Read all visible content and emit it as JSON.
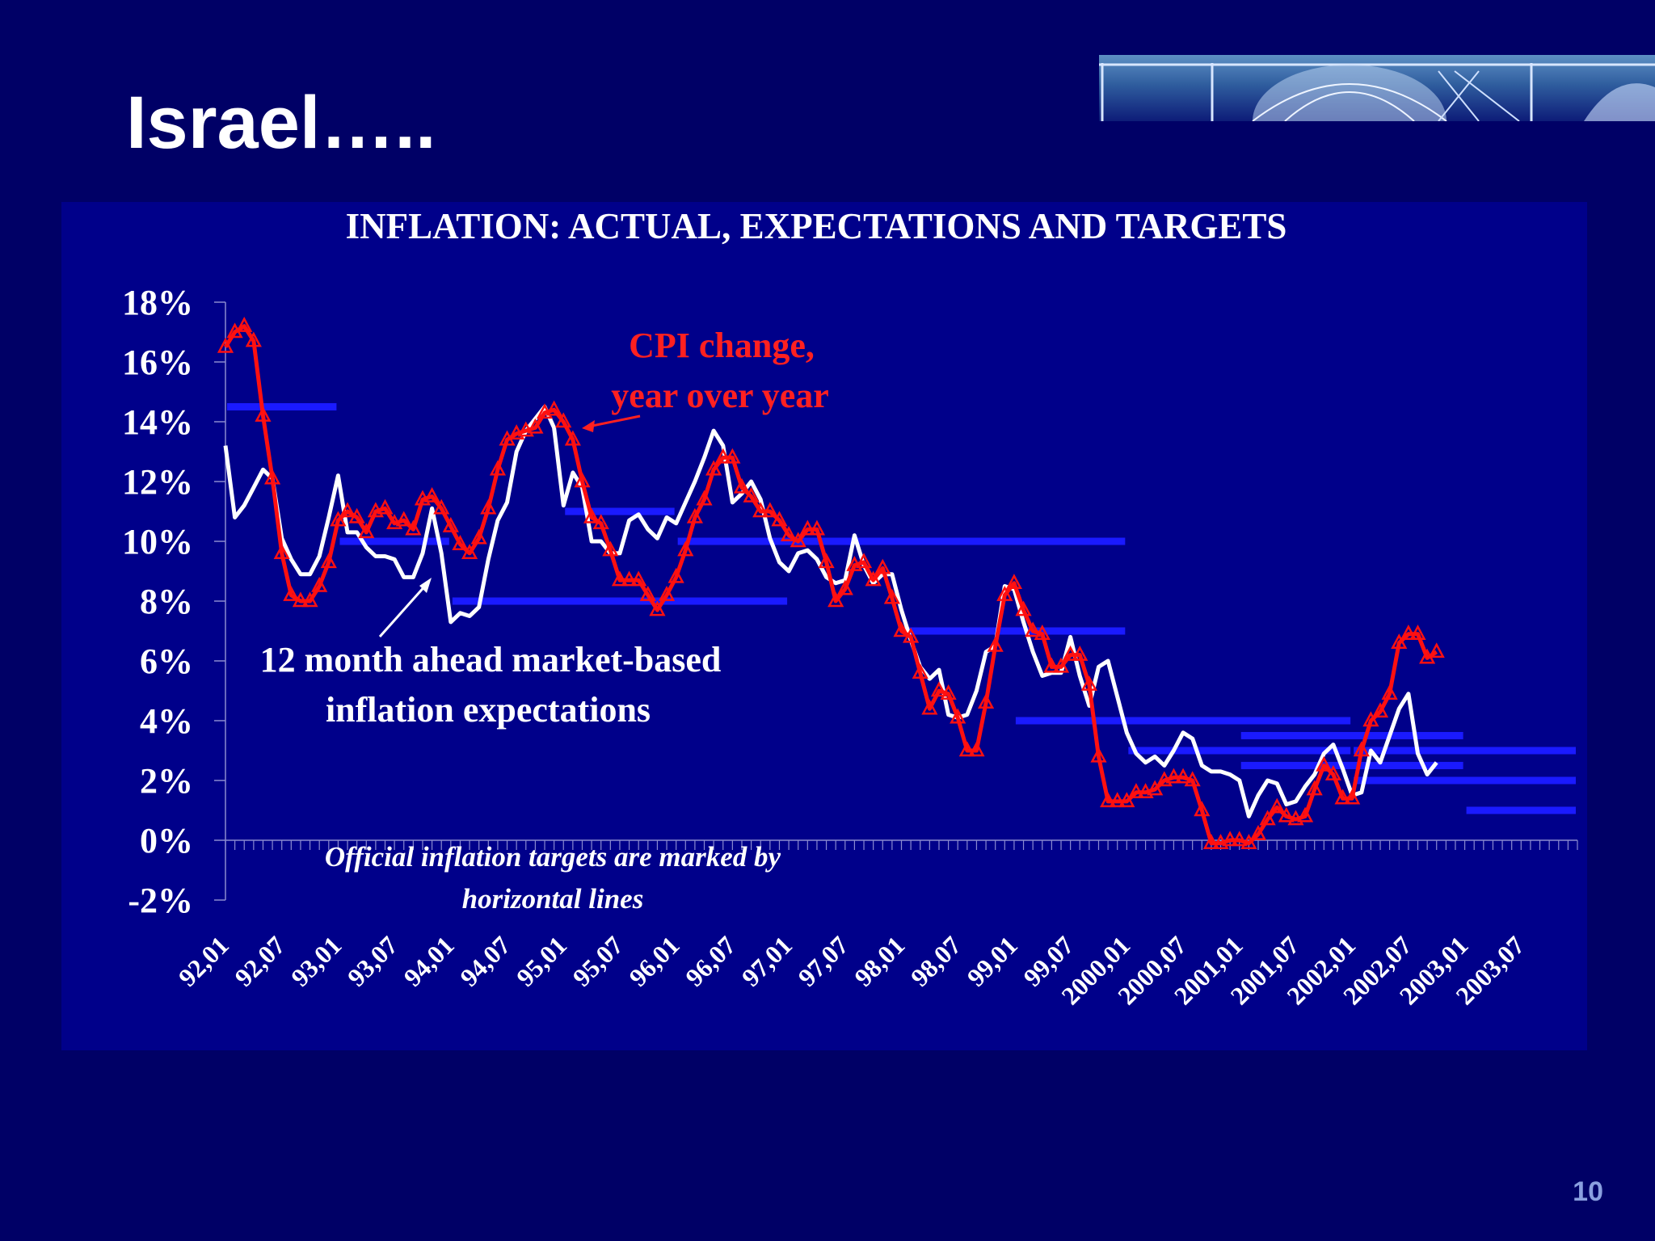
{
  "slide": {
    "title": "Israel…..",
    "page_number": "10"
  },
  "colors": {
    "background": "#000066",
    "plot_area": "#00008a",
    "cpi_series": "#ff1010",
    "expectations_series": "#ffffff",
    "target_lines": "#1a1aff",
    "annotation_red": "#ff2020",
    "text_white": "#ffffff"
  },
  "annotations": {
    "cpi_label_line1": "CPI change,",
    "cpi_label_line2": "year over year",
    "expectations_label_line1": "12 month ahead market-based",
    "expectations_label_line2": "inflation expectations",
    "targets_note_line1": "Official inflation targets are marked by",
    "targets_note_line2": "horizontal lines"
  },
  "chart_data": {
    "type": "line",
    "title": "INFLATION: ACTUAL, EXPECTATIONS AND TARGETS",
    "xlabel": "",
    "ylabel": "",
    "ylim": [
      -2,
      18
    ],
    "y_ticks": [
      -2,
      0,
      2,
      4,
      6,
      8,
      10,
      12,
      14,
      16,
      18
    ],
    "y_tick_labels": [
      "-2%",
      "0%",
      "2%",
      "4%",
      "6%",
      "8%",
      "10%",
      "12%",
      "14%",
      "16%",
      "18%"
    ],
    "x_tick_labels": [
      "92,01",
      "92,07",
      "93,01",
      "93,07",
      "94,01",
      "94,07",
      "95,01",
      "95,07",
      "96,01",
      "96,07",
      "97,01",
      "97,07",
      "98,01",
      "98,07",
      "99,01",
      "99,07",
      "2000,01",
      "2000,07",
      "2001,01",
      "2001,07",
      "2002,01",
      "2002,07",
      "2003,01",
      "2003,07"
    ],
    "grid": false,
    "series": [
      {
        "name": "CPI change, year over year",
        "marker": "triangle",
        "values": [
          16.5,
          17.0,
          17.2,
          16.7,
          14.2,
          12.1,
          9.6,
          8.2,
          8.0,
          8.0,
          8.5,
          9.3,
          10.7,
          11.0,
          10.8,
          10.3,
          11.0,
          11.1,
          10.6,
          10.7,
          10.4,
          11.4,
          11.5,
          11.1,
          10.5,
          9.9,
          9.6,
          10.1,
          11.1,
          12.4,
          13.4,
          13.6,
          13.7,
          13.8,
          14.3,
          14.4,
          14.0,
          13.4,
          12.0,
          10.8,
          10.6,
          9.7,
          8.7,
          8.7,
          8.7,
          8.2,
          7.7,
          8.2,
          8.8,
          9.7,
          10.8,
          11.4,
          12.4,
          12.8,
          12.8,
          11.8,
          11.5,
          11.0,
          11.0,
          10.7,
          10.2,
          10.0,
          10.4,
          10.4,
          9.3,
          8.0,
          8.4,
          9.2,
          9.3,
          8.7,
          9.1,
          8.1,
          7.0,
          6.8,
          5.6,
          4.4,
          5.0,
          4.9,
          4.1,
          3.0,
          3.0,
          4.6,
          6.5,
          8.2,
          8.6,
          7.7,
          7.0,
          6.9,
          5.8,
          5.8,
          6.2,
          6.2,
          5.2,
          2.8,
          1.3,
          1.3,
          1.3,
          1.6,
          1.6,
          1.7,
          2.0,
          2.1,
          2.1,
          2.0,
          1.0,
          -0.1,
          -0.1,
          0.0,
          0.0,
          -0.1,
          0.2,
          0.7,
          1.1,
          0.8,
          0.7,
          0.8,
          1.7,
          2.5,
          2.2,
          1.4,
          1.4,
          3.0,
          4.0,
          4.3,
          4.9,
          6.6,
          6.9,
          6.9,
          6.1,
          6.3
        ]
      },
      {
        "name": "12 month ahead market-based inflation expectations",
        "marker": "none",
        "values": [
          13.2,
          10.8,
          11.2,
          11.8,
          12.4,
          12.1,
          10.1,
          9.4,
          8.9,
          8.9,
          9.5,
          10.8,
          12.2,
          10.3,
          10.3,
          9.8,
          9.5,
          9.5,
          9.4,
          8.8,
          8.8,
          9.6,
          11.1,
          9.6,
          7.3,
          7.6,
          7.5,
          7.8,
          9.4,
          10.7,
          11.3,
          13.0,
          13.7,
          14.1,
          14.5,
          13.8,
          11.2,
          12.3,
          11.8,
          10.0,
          10.0,
          9.6,
          9.6,
          10.7,
          10.9,
          10.4,
          10.1,
          10.8,
          10.6,
          11.3,
          12.0,
          12.8,
          13.7,
          13.2,
          11.3,
          11.6,
          12.0,
          11.4,
          10.1,
          9.3,
          9.0,
          9.6,
          9.7,
          9.4,
          8.8,
          8.6,
          8.7,
          10.2,
          9.2,
          8.6,
          8.9,
          8.9,
          7.7,
          6.7,
          5.8,
          5.4,
          5.7,
          4.2,
          4.1,
          4.2,
          5.0,
          6.3,
          6.5,
          8.5,
          8.4,
          7.3,
          6.3,
          5.5,
          5.6,
          5.6,
          6.8,
          5.5,
          4.5,
          5.8,
          6.0,
          4.8,
          3.6,
          2.9,
          2.6,
          2.8,
          2.5,
          3.0,
          3.6,
          3.4,
          2.5,
          2.3,
          2.3,
          2.2,
          2.0,
          0.8,
          1.5,
          2.0,
          1.9,
          1.2,
          1.3,
          1.8,
          2.2,
          2.9,
          3.2,
          2.4,
          1.5,
          1.6,
          3.0,
          2.6,
          3.5,
          4.4,
          4.9,
          2.9,
          2.2,
          2.6
        ]
      }
    ],
    "targets": [
      {
        "start": "92,01",
        "end": "92,12",
        "value": 14.5
      },
      {
        "start": "93,01",
        "end": "93,12",
        "value": 10.0
      },
      {
        "start": "94,01",
        "end": "96,12",
        "value": 8.0
      },
      {
        "start": "95,01",
        "end": "95,12",
        "value": 11.0
      },
      {
        "start": "96,01",
        "end": "97,12",
        "value": 10.0
      },
      {
        "start": "97,01",
        "end": "99,12",
        "value": 10.0
      },
      {
        "start": "98,01",
        "end": "99,12",
        "value": 7.0
      },
      {
        "start": "99,01",
        "end": "2001,12",
        "value": 4.0
      },
      {
        "start": "2000,01",
        "end": "2001,12",
        "value": 3.0
      },
      {
        "start": "2001,01",
        "end": "2002,12",
        "value": 3.5
      },
      {
        "start": "2001,01",
        "end": "2002,12",
        "value": 2.5
      },
      {
        "start": "2002,01",
        "end": "2003,12",
        "value": 3.0
      },
      {
        "start": "2002,01",
        "end": "2003,12",
        "value": 2.0
      },
      {
        "start": "2003,01",
        "end": "2003,12",
        "value": 3.0
      },
      {
        "start": "2003,01",
        "end": "2003,12",
        "value": 1.0
      }
    ]
  }
}
